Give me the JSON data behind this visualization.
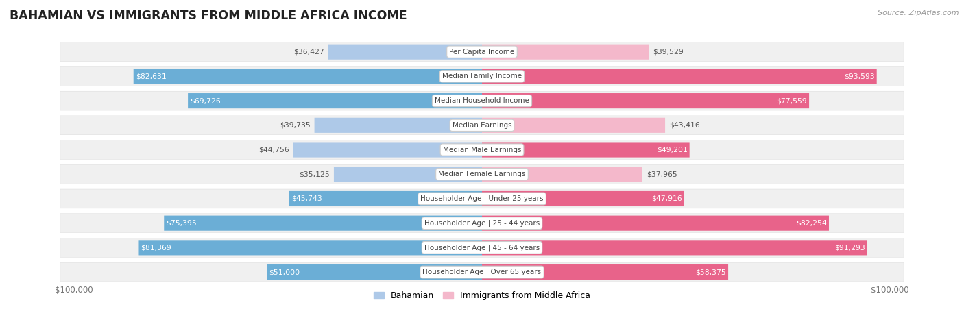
{
  "title": "BAHAMIAN VS IMMIGRANTS FROM MIDDLE AFRICA INCOME",
  "source": "Source: ZipAtlas.com",
  "categories": [
    "Per Capita Income",
    "Median Family Income",
    "Median Household Income",
    "Median Earnings",
    "Median Male Earnings",
    "Median Female Earnings",
    "Householder Age | Under 25 years",
    "Householder Age | 25 - 44 years",
    "Householder Age | 45 - 64 years",
    "Householder Age | Over 65 years"
  ],
  "bahamian_values": [
    36427,
    82631,
    69726,
    39735,
    44756,
    35125,
    45743,
    75395,
    81369,
    51000
  ],
  "immigrant_values": [
    39529,
    93593,
    77559,
    43416,
    49201,
    37965,
    47916,
    82254,
    91293,
    58375
  ],
  "max_value": 100000,
  "bahamian_color": "#6baed6",
  "bahamian_color_light": "#aec9e8",
  "immigrant_color": "#e8638a",
  "immigrant_color_light": "#f4b8cb",
  "bahamian_label": "Bahamian",
  "immigrant_label": "Immigrants from Middle Africa",
  "row_bg_color": "#f0f0f0",
  "category_text_color": "#444444",
  "axis_label_color": "#777777",
  "title_color": "#222222",
  "background_color": "#ffffff",
  "xlabel_left": "$100,000",
  "xlabel_right": "$100,000",
  "inside_threshold": 0.35
}
